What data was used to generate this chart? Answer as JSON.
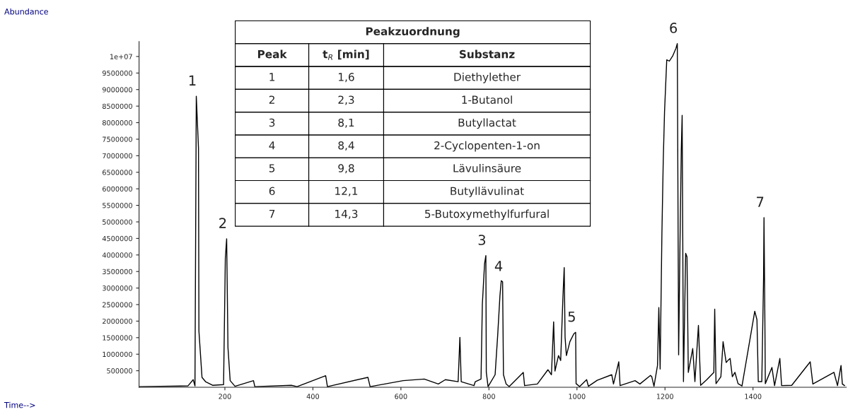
{
  "chart_data": {
    "type": "line",
    "x": [
      6,
      116,
      128,
      132,
      135,
      140,
      141,
      148,
      156,
      172,
      197,
      201,
      204,
      207,
      212,
      223,
      265,
      268,
      351,
      364,
      429,
      433,
      525,
      530,
      605,
      653,
      685,
      701,
      730,
      734,
      737,
      766,
      769,
      782,
      785,
      790,
      793,
      794,
      798,
      814,
      820,
      825,
      828,
      831,
      833,
      839,
      846,
      878,
      881,
      910,
      934,
      942,
      947,
      950,
      958,
      963,
      968,
      971,
      973,
      976,
      984,
      993,
      997,
      998,
      1006,
      1022,
      1026,
      1046,
      1079,
      1083,
      1095,
      1098,
      1132,
      1143,
      1167,
      1170,
      1175,
      1183,
      1186,
      1189,
      1193,
      1196,
      1199,
      1204,
      1210,
      1218,
      1225,
      1228,
      1231,
      1234,
      1237,
      1239,
      1242,
      1247,
      1250,
      1253,
      1263,
      1268,
      1276,
      1281,
      1295,
      1311,
      1313,
      1316,
      1327,
      1332,
      1339,
      1343,
      1348,
      1353,
      1359,
      1366,
      1375,
      1404,
      1409,
      1412,
      1420,
      1424,
      1425,
      1427,
      1428,
      1443,
      1449,
      1461,
      1465,
      1488,
      1530,
      1536,
      1584,
      1592,
      1600,
      1603,
      1608
    ],
    "series": [
      {
        "color": "#000000",
        "values": [
          20000,
          40000,
          230000,
          40000,
          8800000,
          7230000,
          1700000,
          300000,
          170000,
          60000,
          80000,
          3900000,
          4490000,
          1200000,
          200000,
          30000,
          200000,
          20000,
          60000,
          20000,
          350000,
          20000,
          300000,
          20000,
          200000,
          250000,
          100000,
          230000,
          170000,
          1510000,
          170000,
          50000,
          170000,
          250000,
          2510000,
          3730000,
          3980000,
          450000,
          20000,
          380000,
          1600000,
          2770000,
          3220000,
          3190000,
          380000,
          100000,
          20000,
          450000,
          50000,
          100000,
          530000,
          380000,
          1980000,
          490000,
          960000,
          810000,
          2680000,
          3620000,
          1510000,
          960000,
          1380000,
          1620000,
          1660000,
          110000,
          20000,
          230000,
          30000,
          210000,
          380000,
          100000,
          770000,
          50000,
          200000,
          100000,
          360000,
          320000,
          30000,
          660000,
          2410000,
          550000,
          4640000,
          6820000,
          8330000,
          9900000,
          9860000,
          10030000,
          10250000,
          10390000,
          980000,
          4220000,
          7160000,
          8220000,
          170000,
          4050000,
          3940000,
          450000,
          1170000,
          170000,
          1870000,
          60000,
          230000,
          450000,
          2360000,
          110000,
          320000,
          1380000,
          750000,
          810000,
          870000,
          320000,
          450000,
          110000,
          40000,
          2300000,
          2040000,
          170000,
          170000,
          3320000,
          5130000,
          2020000,
          110000,
          600000,
          50000,
          870000,
          50000,
          60000,
          770000,
          100000,
          450000,
          50000,
          660000,
          100000,
          50000
        ]
      }
    ],
    "xlim": [
      5,
      1612
    ],
    "ylim": [
      0,
      10450000
    ],
    "xticks": [
      200,
      400,
      600,
      800,
      1000,
      1200,
      1400
    ],
    "yticks": [
      500000,
      1000000,
      1500000,
      2000000,
      2500000,
      3000000,
      3500000,
      4000000,
      4500000,
      5000000,
      5500000,
      6000000,
      6500000,
      7000000,
      7500000,
      8000000,
      8500000,
      9000000,
      9500000,
      {
        "value": 10000000,
        "label": "1e+07"
      }
    ],
    "grid": false,
    "annotations": [
      {
        "text": "1",
        "x": 135,
        "y": 8800000
      },
      {
        "text": "2",
        "x": 204,
        "y": 4490000
      },
      {
        "text": "3",
        "x": 793,
        "y": 3980000
      },
      {
        "text": "4",
        "x": 831,
        "y": 3190000
      },
      {
        "text": "5",
        "x": 997,
        "y": 1660000
      },
      {
        "text": "6",
        "x": 1228,
        "y": 10390000
      },
      {
        "text": "7",
        "x": 1425,
        "y": 5130000
      },
      "Abundance",
      "Time-->",
      "Peakzuordnung",
      "Peak",
      "t$_{R}$ [min]",
      "Substanz",
      "1",
      "1,6",
      "Diethylether",
      "2",
      "2,3",
      "1-Butanol",
      "3",
      "8,1",
      "Butyllactat",
      "4",
      "8,4",
      "2-Cyclopenten-1-on",
      "5",
      "9,8",
      "Lävulinsäure",
      "6",
      "12,1",
      "Butyllävulinat",
      "7",
      "14,3",
      "5-Butoxymethylfurfural"
    ]
  }
}
